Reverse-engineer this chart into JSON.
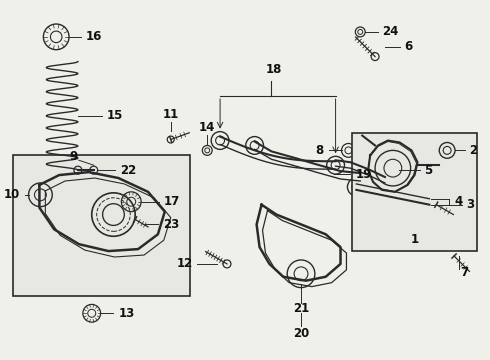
{
  "bg_color": "#f0f0eb",
  "line_color": "#2a2a2a",
  "text_color": "#111111",
  "fig_width": 4.9,
  "fig_height": 3.6,
  "dpi": 100
}
